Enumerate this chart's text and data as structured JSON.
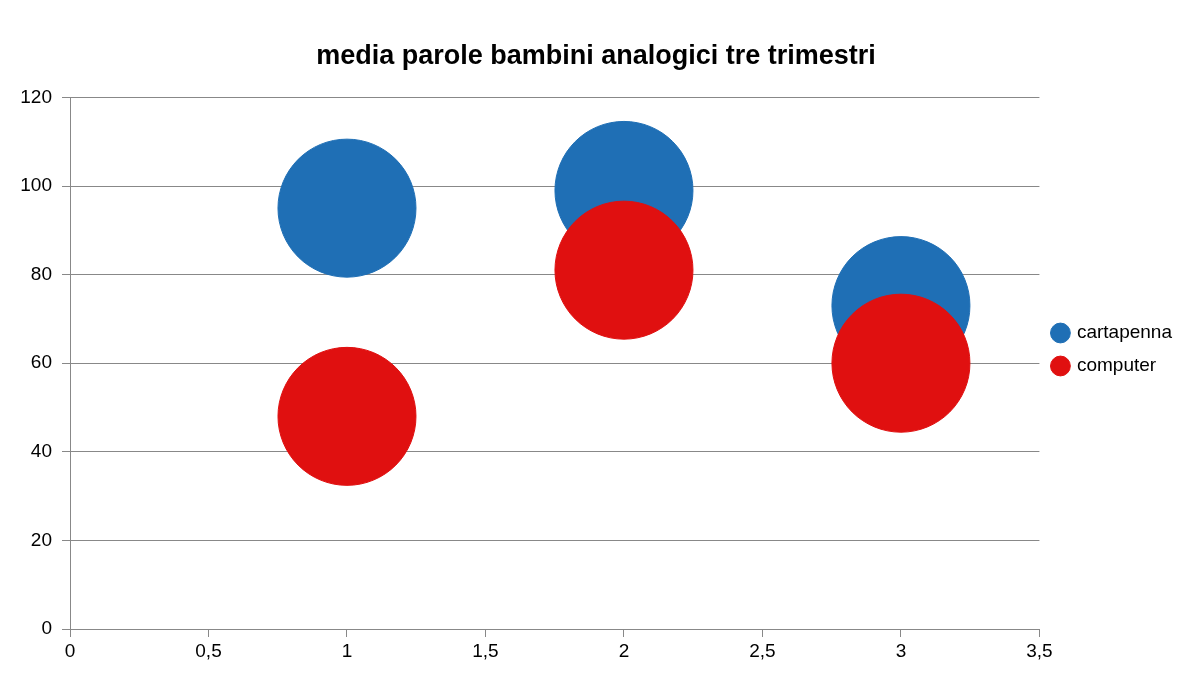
{
  "chart_data": {
    "type": "bubble",
    "title": "media parole bambini analogici tre trimestri",
    "x": [
      1,
      2,
      3
    ],
    "series": [
      {
        "name": "cartapenna",
        "color": "#1f6fb5",
        "values": [
          95,
          99,
          73
        ],
        "sizes": [
          1,
          1,
          1
        ]
      },
      {
        "name": "computer",
        "color": "#e01010",
        "values": [
          48,
          81,
          60
        ],
        "sizes": [
          1,
          1,
          1
        ]
      }
    ],
    "xlim": [
      0,
      3.5
    ],
    "xticks": [
      0,
      {
        "value": 0.5,
        "label": "0,5"
      },
      1,
      {
        "value": 1.5,
        "label": "1,5"
      },
      2,
      {
        "value": 2.5,
        "label": "2,5"
      },
      3,
      {
        "value": 3.5,
        "label": "3,5"
      }
    ],
    "ylim": [
      0,
      120
    ],
    "yticks": [
      0,
      20,
      40,
      60,
      80,
      100,
      120
    ],
    "grid": "y",
    "legend": "right"
  }
}
